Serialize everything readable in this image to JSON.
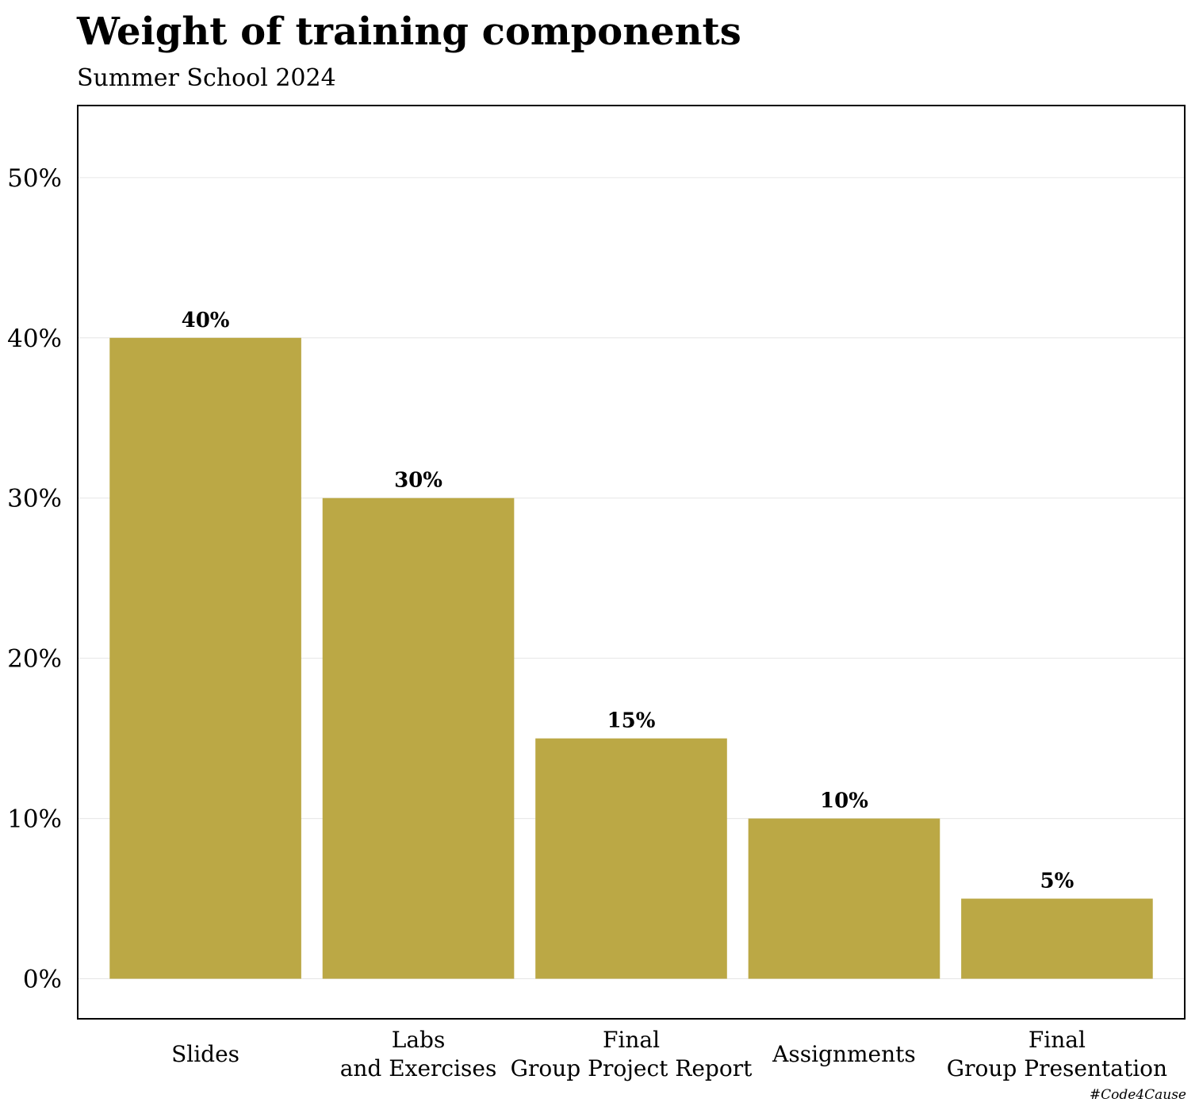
{
  "chart_data": {
    "type": "bar",
    "title": "Weight of training components",
    "subtitle": "Summer School 2024",
    "categories": [
      [
        "Slides"
      ],
      [
        "Labs",
        "and Exercises"
      ],
      [
        "Final",
        "Group Project Report"
      ],
      [
        "Assignments"
      ],
      [
        "Final",
        "Group Presentation"
      ]
    ],
    "values": [
      40,
      30,
      15,
      10,
      5
    ],
    "data_labels": [
      "40%",
      "30%",
      "15%",
      "10%",
      "5%"
    ],
    "y_ticks": [
      0,
      10,
      20,
      30,
      40,
      50
    ],
    "y_tick_labels": [
      "0%",
      "10%",
      "20%",
      "30%",
      "40%",
      "50%"
    ],
    "ylim": [
      -2.5,
      54.5
    ],
    "xlabel": "",
    "ylabel": "",
    "grid": true,
    "legend": "none",
    "bar_color": "#BBA845",
    "grid_color": "#E6E6E6",
    "caption": "#Code4Cause"
  }
}
